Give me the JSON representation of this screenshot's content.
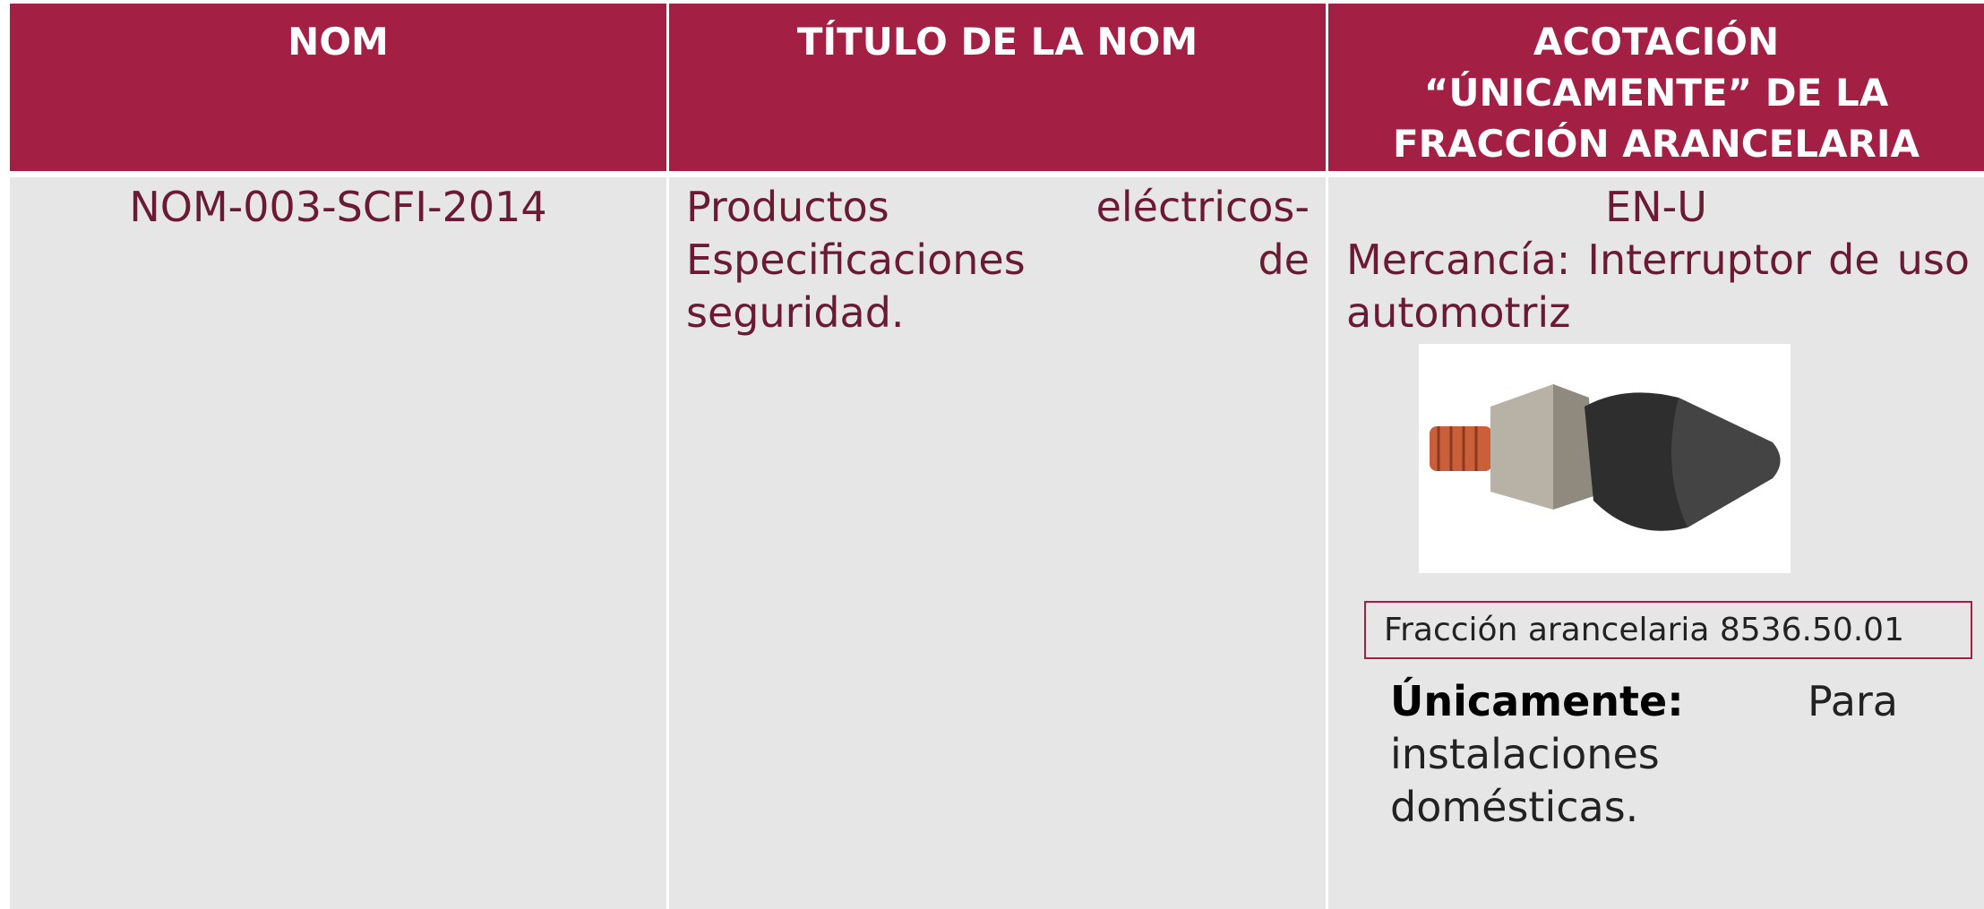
{
  "table": {
    "headers": [
      "NOM",
      "TÍTULO DE LA NOM",
      [
        "ACOTACIÓN",
        "“ÚNICAMENTE” DE LA",
        "FRACCIÓN ARANCELARIA"
      ]
    ],
    "rows": [
      [
        "NOM-003-SCFI-2014",
        "Productos eléctricos-Especificaciones de seguridad.",
        {
          "code": "EN-U",
          "merchandise": "Mercancía: Interruptor de uso automotriz",
          "tariff": "Fracción arancelaria 8536.50.01",
          "only_label": "Únicamente:",
          "only_text": "Para instalaciones domésticas."
        }
      ]
    ]
  }
}
